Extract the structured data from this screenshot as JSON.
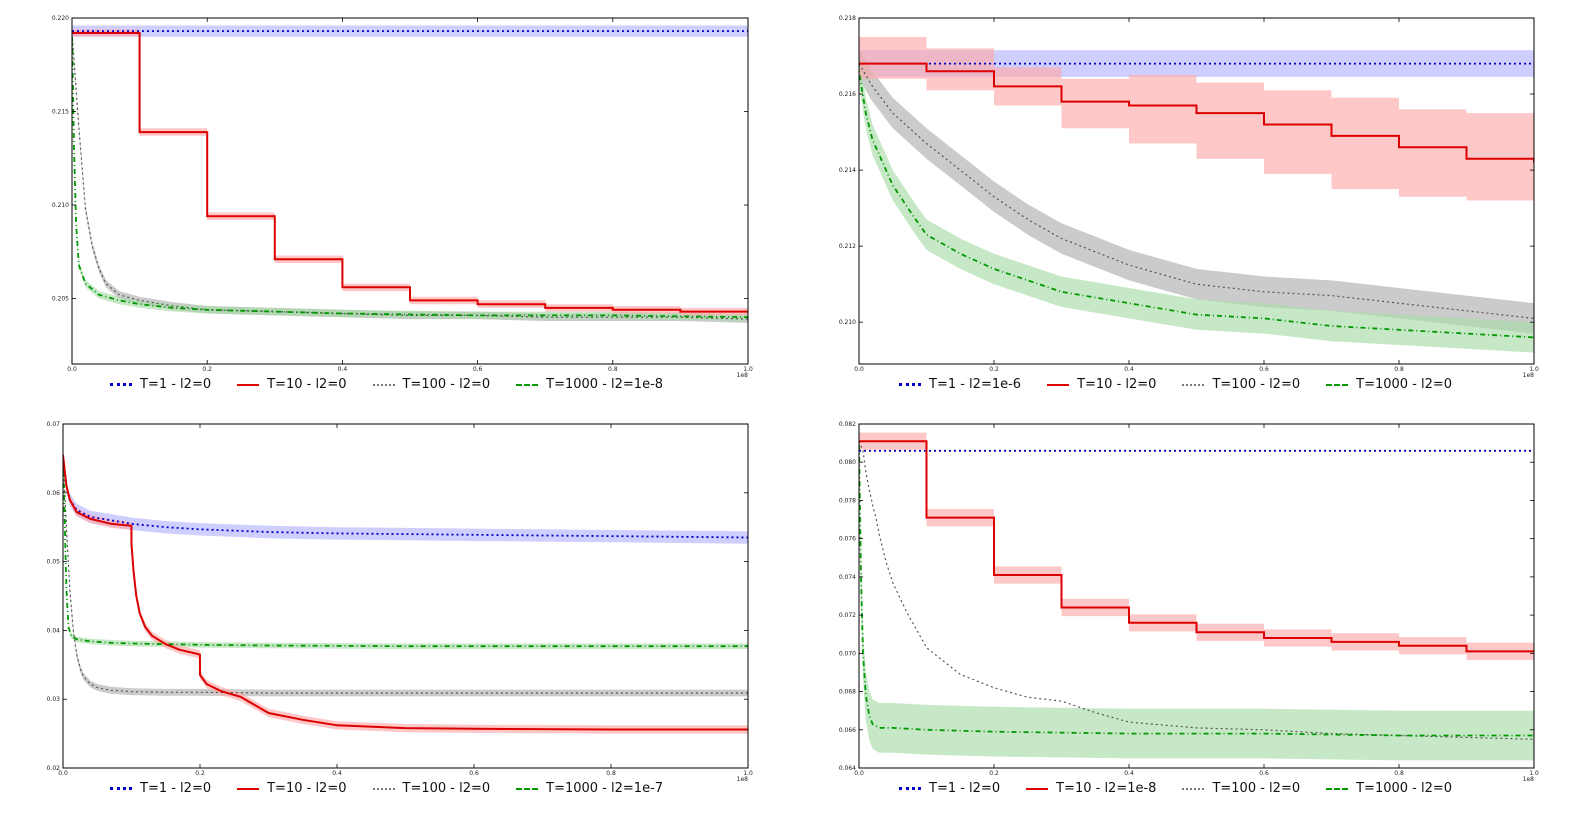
{
  "figure": {
    "colors": {
      "blue": "#0000cc",
      "red": "#dd0000",
      "gray": "#555555",
      "green": "#009900",
      "blue_band": "#b3b3ff",
      "red_band": "#ffaaaa",
      "gray_band": "#b5b5b5",
      "green_band": "#a9dba9"
    }
  },
  "chart_data": [
    {
      "type": "line",
      "position": "top-left",
      "xlim": [
        0,
        1.0
      ],
      "ylim": [
        0.2015,
        0.22
      ],
      "xticks": [
        0.0,
        0.2,
        0.4,
        0.6,
        0.8,
        1.0
      ],
      "xtick_labels": [
        "0.0",
        "0.2",
        "0.4",
        "0.6",
        "0.8",
        "1.0"
      ],
      "yticks": [
        0.205,
        0.21,
        0.215,
        0.22
      ],
      "ytick_labels": [
        "0.205",
        "0.210",
        "0.215",
        "0.220"
      ],
      "x_offset_label": "1e8",
      "series": [
        {
          "name": "T=1 - l2=0",
          "color": "blue",
          "style": "dotted",
          "x": [
            0,
            1.0
          ],
          "y": [
            0.2193,
            0.2193
          ],
          "band": 0.0003
        },
        {
          "name": "T=10 - l2=0",
          "color": "red",
          "style": "solid",
          "step": true,
          "x": [
            0,
            0.1,
            0.2,
            0.3,
            0.4,
            0.5,
            0.6,
            0.7,
            0.8,
            0.9,
            1.0
          ],
          "y": [
            0.2192,
            0.2139,
            0.2094,
            0.2071,
            0.2056,
            0.2049,
            0.2047,
            0.2045,
            0.2044,
            0.2043,
            0.2043
          ],
          "band": 0.0002
        },
        {
          "name": "T=100 - l2=0",
          "color": "gray",
          "style": "dotted",
          "x": [
            0,
            0.01,
            0.02,
            0.03,
            0.04,
            0.05,
            0.07,
            0.1,
            0.15,
            0.2,
            0.3,
            0.4,
            0.5,
            0.6,
            0.7,
            0.8,
            0.9,
            1.0
          ],
          "y": [
            0.2192,
            0.2142,
            0.2098,
            0.2078,
            0.2066,
            0.2058,
            0.2052,
            0.2049,
            0.2046,
            0.2044,
            0.2043,
            0.2042,
            0.2041,
            0.2041,
            0.204,
            0.204,
            0.204,
            0.2039
          ],
          "band": 0.0002
        },
        {
          "name": "T=1000 - l2=1e-8",
          "color": "green",
          "style": "dashdot",
          "x": [
            0,
            0.003,
            0.006,
            0.01,
            0.02,
            0.04,
            0.07,
            0.1,
            0.15,
            0.2,
            0.3,
            0.4,
            0.6,
            0.8,
            1.0
          ],
          "y": [
            0.2192,
            0.213,
            0.209,
            0.2068,
            0.2058,
            0.2052,
            0.2049,
            0.2047,
            0.2045,
            0.2044,
            0.2043,
            0.2042,
            0.2041,
            0.2041,
            0.204
          ],
          "band": 0.0002
        }
      ]
    },
    {
      "type": "line",
      "position": "top-right",
      "xlim": [
        0,
        1.0
      ],
      "ylim": [
        0.2089,
        0.218
      ],
      "xticks": [
        0.0,
        0.2,
        0.4,
        0.6,
        0.8,
        1.0
      ],
      "xtick_labels": [
        "0.0",
        "0.2",
        "0.4",
        "0.6",
        "0.8",
        "1.0"
      ],
      "yticks": [
        0.21,
        0.212,
        0.214,
        0.216,
        0.218
      ],
      "ytick_labels": [
        "0.210",
        "0.212",
        "0.214",
        "0.216",
        "0.218"
      ],
      "x_offset_label": "1e8",
      "series": [
        {
          "name": "T=1 - l2=1e-6",
          "color": "blue",
          "style": "dotted",
          "x": [
            0,
            1.0
          ],
          "y": [
            0.2168,
            0.2168
          ],
          "band": 0.00035
        },
        {
          "name": "T=10 - l2=0",
          "color": "red",
          "style": "solid",
          "step": true,
          "x": [
            0,
            0.1,
            0.2,
            0.3,
            0.4,
            0.5,
            0.6,
            0.7,
            0.8,
            0.9,
            1.0
          ],
          "y": [
            0.2168,
            0.2166,
            0.2162,
            0.2158,
            0.2157,
            0.2155,
            0.2152,
            0.2149,
            0.2146,
            0.2143,
            0.2142
          ],
          "band_lo": [
            0.0004,
            0.0005,
            0.0005,
            0.0007,
            0.001,
            0.0012,
            0.0013,
            0.0014,
            0.0013,
            0.0011,
            0.0011
          ],
          "band_hi": [
            0.0007,
            0.0006,
            0.0005,
            0.0006,
            0.0008,
            0.0008,
            0.0009,
            0.001,
            0.001,
            0.0012,
            0.0013
          ]
        },
        {
          "name": "T=100 - l2=0",
          "color": "gray",
          "style": "dotted",
          "x": [
            0,
            0.02,
            0.05,
            0.1,
            0.15,
            0.2,
            0.25,
            0.3,
            0.4,
            0.5,
            0.6,
            0.7,
            0.8,
            0.9,
            1.0
          ],
          "y": [
            0.2168,
            0.2162,
            0.2155,
            0.2147,
            0.214,
            0.2133,
            0.2127,
            0.2122,
            0.2115,
            0.211,
            0.2108,
            0.2107,
            0.2105,
            0.2103,
            0.2101
          ],
          "band": 0.0004
        },
        {
          "name": "T=1000 - l2=0",
          "color": "green",
          "style": "dashdot",
          "x": [
            0,
            0.01,
            0.02,
            0.05,
            0.08,
            0.1,
            0.15,
            0.2,
            0.3,
            0.4,
            0.5,
            0.6,
            0.7,
            0.8,
            0.9,
            1.0
          ],
          "y": [
            0.2166,
            0.2155,
            0.2148,
            0.2136,
            0.2128,
            0.2123,
            0.2118,
            0.2114,
            0.2108,
            0.2105,
            0.2102,
            0.2101,
            0.2099,
            0.2098,
            0.2097,
            0.2096
          ],
          "band": 0.0004
        }
      ]
    },
    {
      "type": "line",
      "position": "bottom-left",
      "xlim": [
        0,
        1.0
      ],
      "ylim": [
        0.02,
        0.07
      ],
      "xticks": [
        0.0,
        0.2,
        0.4,
        0.6,
        0.8,
        1.0
      ],
      "xtick_labels": [
        "0.0",
        "0.2",
        "0.4",
        "0.6",
        "0.8",
        "1.0"
      ],
      "yticks": [
        0.02,
        0.03,
        0.04,
        0.05,
        0.06,
        0.07
      ],
      "ytick_labels": [
        "0.02",
        "0.03",
        "0.04",
        "0.05",
        "0.06",
        "0.07"
      ],
      "x_offset_label": "1e8",
      "series": [
        {
          "name": "T=1 - l2=0",
          "color": "blue",
          "style": "dotted",
          "x": [
            0,
            0.005,
            0.01,
            0.02,
            0.04,
            0.07,
            0.1,
            0.15,
            0.2,
            0.3,
            0.4,
            0.5,
            0.6,
            0.7,
            0.8,
            0.9,
            1.0
          ],
          "y": [
            0.0655,
            0.061,
            0.059,
            0.0575,
            0.0565,
            0.056,
            0.0555,
            0.055,
            0.0547,
            0.0543,
            0.0541,
            0.054,
            0.0539,
            0.0538,
            0.0537,
            0.0536,
            0.0535
          ],
          "band": 0.0009
        },
        {
          "name": "T=10 - l2=0",
          "color": "red",
          "style": "solid",
          "x": [
            0,
            0.005,
            0.01,
            0.02,
            0.04,
            0.07,
            0.0999,
            0.1,
            0.103,
            0.107,
            0.112,
            0.12,
            0.13,
            0.15,
            0.17,
            0.1999,
            0.2,
            0.21,
            0.23,
            0.26,
            0.3,
            0.35,
            0.4,
            0.5,
            0.6,
            0.8,
            1.0
          ],
          "y": [
            0.0655,
            0.061,
            0.059,
            0.0572,
            0.0562,
            0.0555,
            0.0552,
            0.0525,
            0.0485,
            0.045,
            0.0425,
            0.0405,
            0.0392,
            0.038,
            0.0372,
            0.0365,
            0.0335,
            0.0322,
            0.0312,
            0.0303,
            0.028,
            0.027,
            0.0262,
            0.0258,
            0.0257,
            0.0256,
            0.0256
          ],
          "band": 0.0006
        },
        {
          "name": "T=100 - l2=0",
          "color": "gray",
          "style": "dotted",
          "x": [
            0,
            0.005,
            0.01,
            0.015,
            0.02,
            0.025,
            0.03,
            0.04,
            0.05,
            0.07,
            0.1,
            0.15,
            0.2,
            0.3,
            0.5,
            0.7,
            1.0
          ],
          "y": [
            0.0655,
            0.055,
            0.046,
            0.04,
            0.0365,
            0.0345,
            0.0333,
            0.0322,
            0.0317,
            0.0313,
            0.0311,
            0.031,
            0.031,
            0.0309,
            0.0309,
            0.0309,
            0.0309
          ],
          "band": 0.0005
        },
        {
          "name": "T=1000 - l2=1e-7",
          "color": "green",
          "style": "dashdot",
          "x": [
            0,
            0.002,
            0.005,
            0.008,
            0.012,
            0.02,
            0.04,
            0.07,
            0.1,
            0.2,
            0.3,
            0.5,
            0.7,
            1.0
          ],
          "y": [
            0.0655,
            0.058,
            0.046,
            0.0405,
            0.0392,
            0.0387,
            0.0384,
            0.0382,
            0.0381,
            0.0379,
            0.0378,
            0.0377,
            0.0377,
            0.0377
          ],
          "band": 0.0004
        }
      ]
    },
    {
      "type": "line",
      "position": "bottom-right",
      "xlim": [
        0,
        1.0
      ],
      "ylim": [
        0.064,
        0.082
      ],
      "xticks": [
        0.0,
        0.2,
        0.4,
        0.6,
        0.8,
        1.0
      ],
      "xtick_labels": [
        "0.0",
        "0.2",
        "0.4",
        "0.6",
        "0.8",
        "1.0"
      ],
      "yticks": [
        0.064,
        0.066,
        0.068,
        0.07,
        0.072,
        0.074,
        0.076,
        0.078,
        0.08,
        0.082
      ],
      "ytick_labels": [
        "0.064",
        "0.066",
        "0.068",
        "0.070",
        "0.072",
        "0.074",
        "0.076",
        "0.078",
        "0.080",
        "0.082"
      ],
      "x_offset_label": "1e8",
      "series": [
        {
          "name": "T=1 - l2=0",
          "color": "blue",
          "style": "dotted",
          "x": [
            0,
            1.0
          ],
          "y": [
            0.0806,
            0.0806
          ],
          "band": 0
        },
        {
          "name": "T=10 - l2=1e-8",
          "color": "red",
          "style": "solid",
          "step": true,
          "x": [
            0,
            0.1,
            0.2,
            0.3,
            0.4,
            0.5,
            0.6,
            0.7,
            0.8,
            0.9,
            1.0
          ],
          "y": [
            0.0811,
            0.0771,
            0.0741,
            0.0724,
            0.0716,
            0.0711,
            0.0708,
            0.0706,
            0.0704,
            0.0701,
            0.0701
          ],
          "band": 0.00045
        },
        {
          "name": "T=100 - l2=0",
          "color": "gray",
          "style": "dotted",
          "x": [
            0,
            0.006,
            0.01,
            0.015,
            0.02,
            0.025,
            0.03,
            0.04,
            0.05,
            0.07,
            0.1,
            0.15,
            0.2,
            0.25,
            0.3,
            0.35,
            0.4,
            0.5,
            0.6,
            0.7,
            0.8,
            0.9,
            1.0
          ],
          "y": [
            0.0811,
            0.0806,
            0.0795,
            0.0786,
            0.0778,
            0.0771,
            0.0762,
            0.0748,
            0.0737,
            0.0722,
            0.0703,
            0.0689,
            0.0682,
            0.0677,
            0.0675,
            0.0669,
            0.0664,
            0.0661,
            0.066,
            0.0658,
            0.0657,
            0.0656,
            0.0655
          ],
          "band": 0
        },
        {
          "name": "T=1000 - l2=0",
          "color": "green",
          "style": "dashdot",
          "x": [
            0,
            0.003,
            0.006,
            0.01,
            0.015,
            0.02,
            0.03,
            0.05,
            0.1,
            0.2,
            0.4,
            0.6,
            0.8,
            1.0
          ],
          "y": [
            0.0811,
            0.074,
            0.07,
            0.0678,
            0.0668,
            0.0663,
            0.0661,
            0.0661,
            0.066,
            0.0659,
            0.0658,
            0.0658,
            0.0657,
            0.0657
          ],
          "band": 0.0013
        }
      ]
    }
  ]
}
